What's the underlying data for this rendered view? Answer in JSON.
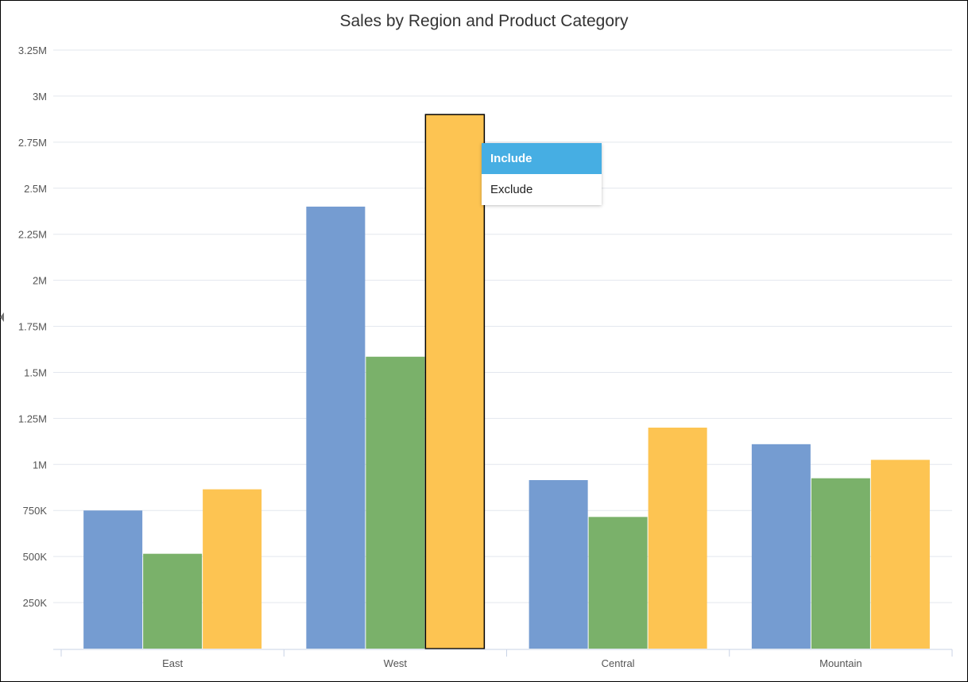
{
  "chart_data": {
    "type": "bar",
    "title": "Sales by Region and Product Category",
    "xlabel": "",
    "ylabel": "",
    "categories": [
      "East",
      "West",
      "Central",
      "Mountain"
    ],
    "series": [
      {
        "color": "#759cd1",
        "values": [
          750000,
          2400000,
          915000,
          1110000
        ]
      },
      {
        "color": "#7ab16a",
        "values": [
          515000,
          1585000,
          715000,
          925000
        ]
      },
      {
        "color": "#fdc452",
        "values": [
          865000,
          2900000,
          1200000,
          1025000
        ]
      }
    ],
    "ylim": [
      0,
      3250000
    ],
    "yticks": [
      250000,
      500000,
      750000,
      1000000,
      1250000,
      1500000,
      1750000,
      2000000,
      2250000,
      2500000,
      2750000,
      3000000,
      3250000
    ],
    "ytick_labels": [
      "250K",
      "500K",
      "750K",
      "1M",
      "1.25M",
      "1.5M",
      "1.75M",
      "2M",
      "2.25M",
      "2.5M",
      "2.75M",
      "3M",
      "3.25M"
    ],
    "grid": true,
    "legend": "none",
    "selected_bar": {
      "category": "West",
      "series_index": 2
    }
  },
  "context_menu": {
    "items": [
      {
        "label": "Include",
        "active": true
      },
      {
        "label": "Exclude",
        "active": false
      }
    ]
  }
}
